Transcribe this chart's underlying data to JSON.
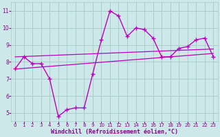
{
  "x": [
    0,
    1,
    2,
    3,
    4,
    5,
    6,
    7,
    8,
    9,
    10,
    11,
    12,
    13,
    14,
    15,
    16,
    17,
    18,
    19,
    20,
    21,
    22,
    23
  ],
  "windchill": [
    7.6,
    8.3,
    7.9,
    7.9,
    7.0,
    4.8,
    5.2,
    5.3,
    5.3,
    7.3,
    9.3,
    11.0,
    10.7,
    9.5,
    10.0,
    9.9,
    9.4,
    8.3,
    8.3,
    8.8,
    8.9,
    9.3,
    9.4,
    8.3
  ],
  "trend_upper": [
    8.3,
    8.32,
    8.34,
    8.36,
    8.38,
    8.4,
    8.42,
    8.44,
    8.46,
    8.48,
    8.5,
    8.52,
    8.54,
    8.56,
    8.58,
    8.6,
    8.62,
    8.64,
    8.66,
    8.68,
    8.7,
    8.72,
    8.74,
    8.76
  ],
  "trend_lower": [
    7.58,
    7.62,
    7.66,
    7.7,
    7.74,
    7.78,
    7.82,
    7.86,
    7.9,
    7.94,
    7.98,
    8.02,
    8.06,
    8.1,
    8.14,
    8.18,
    8.22,
    8.26,
    8.3,
    8.34,
    8.38,
    8.42,
    8.46,
    8.5
  ],
  "line_color": "#bb00bb",
  "bg_color": "#cce8e8",
  "grid_color": "#aacccc",
  "axis_color": "#880088",
  "xlabel": "Windchill (Refroidissement éolien,°C)",
  "ylim": [
    4.5,
    11.5
  ],
  "xlim": [
    -0.5,
    23.5
  ],
  "yticks": [
    5,
    6,
    7,
    8,
    9,
    10,
    11
  ],
  "xticks": [
    0,
    1,
    2,
    3,
    4,
    5,
    6,
    7,
    8,
    9,
    10,
    11,
    12,
    13,
    14,
    15,
    16,
    17,
    18,
    19,
    20,
    21,
    22,
    23
  ]
}
